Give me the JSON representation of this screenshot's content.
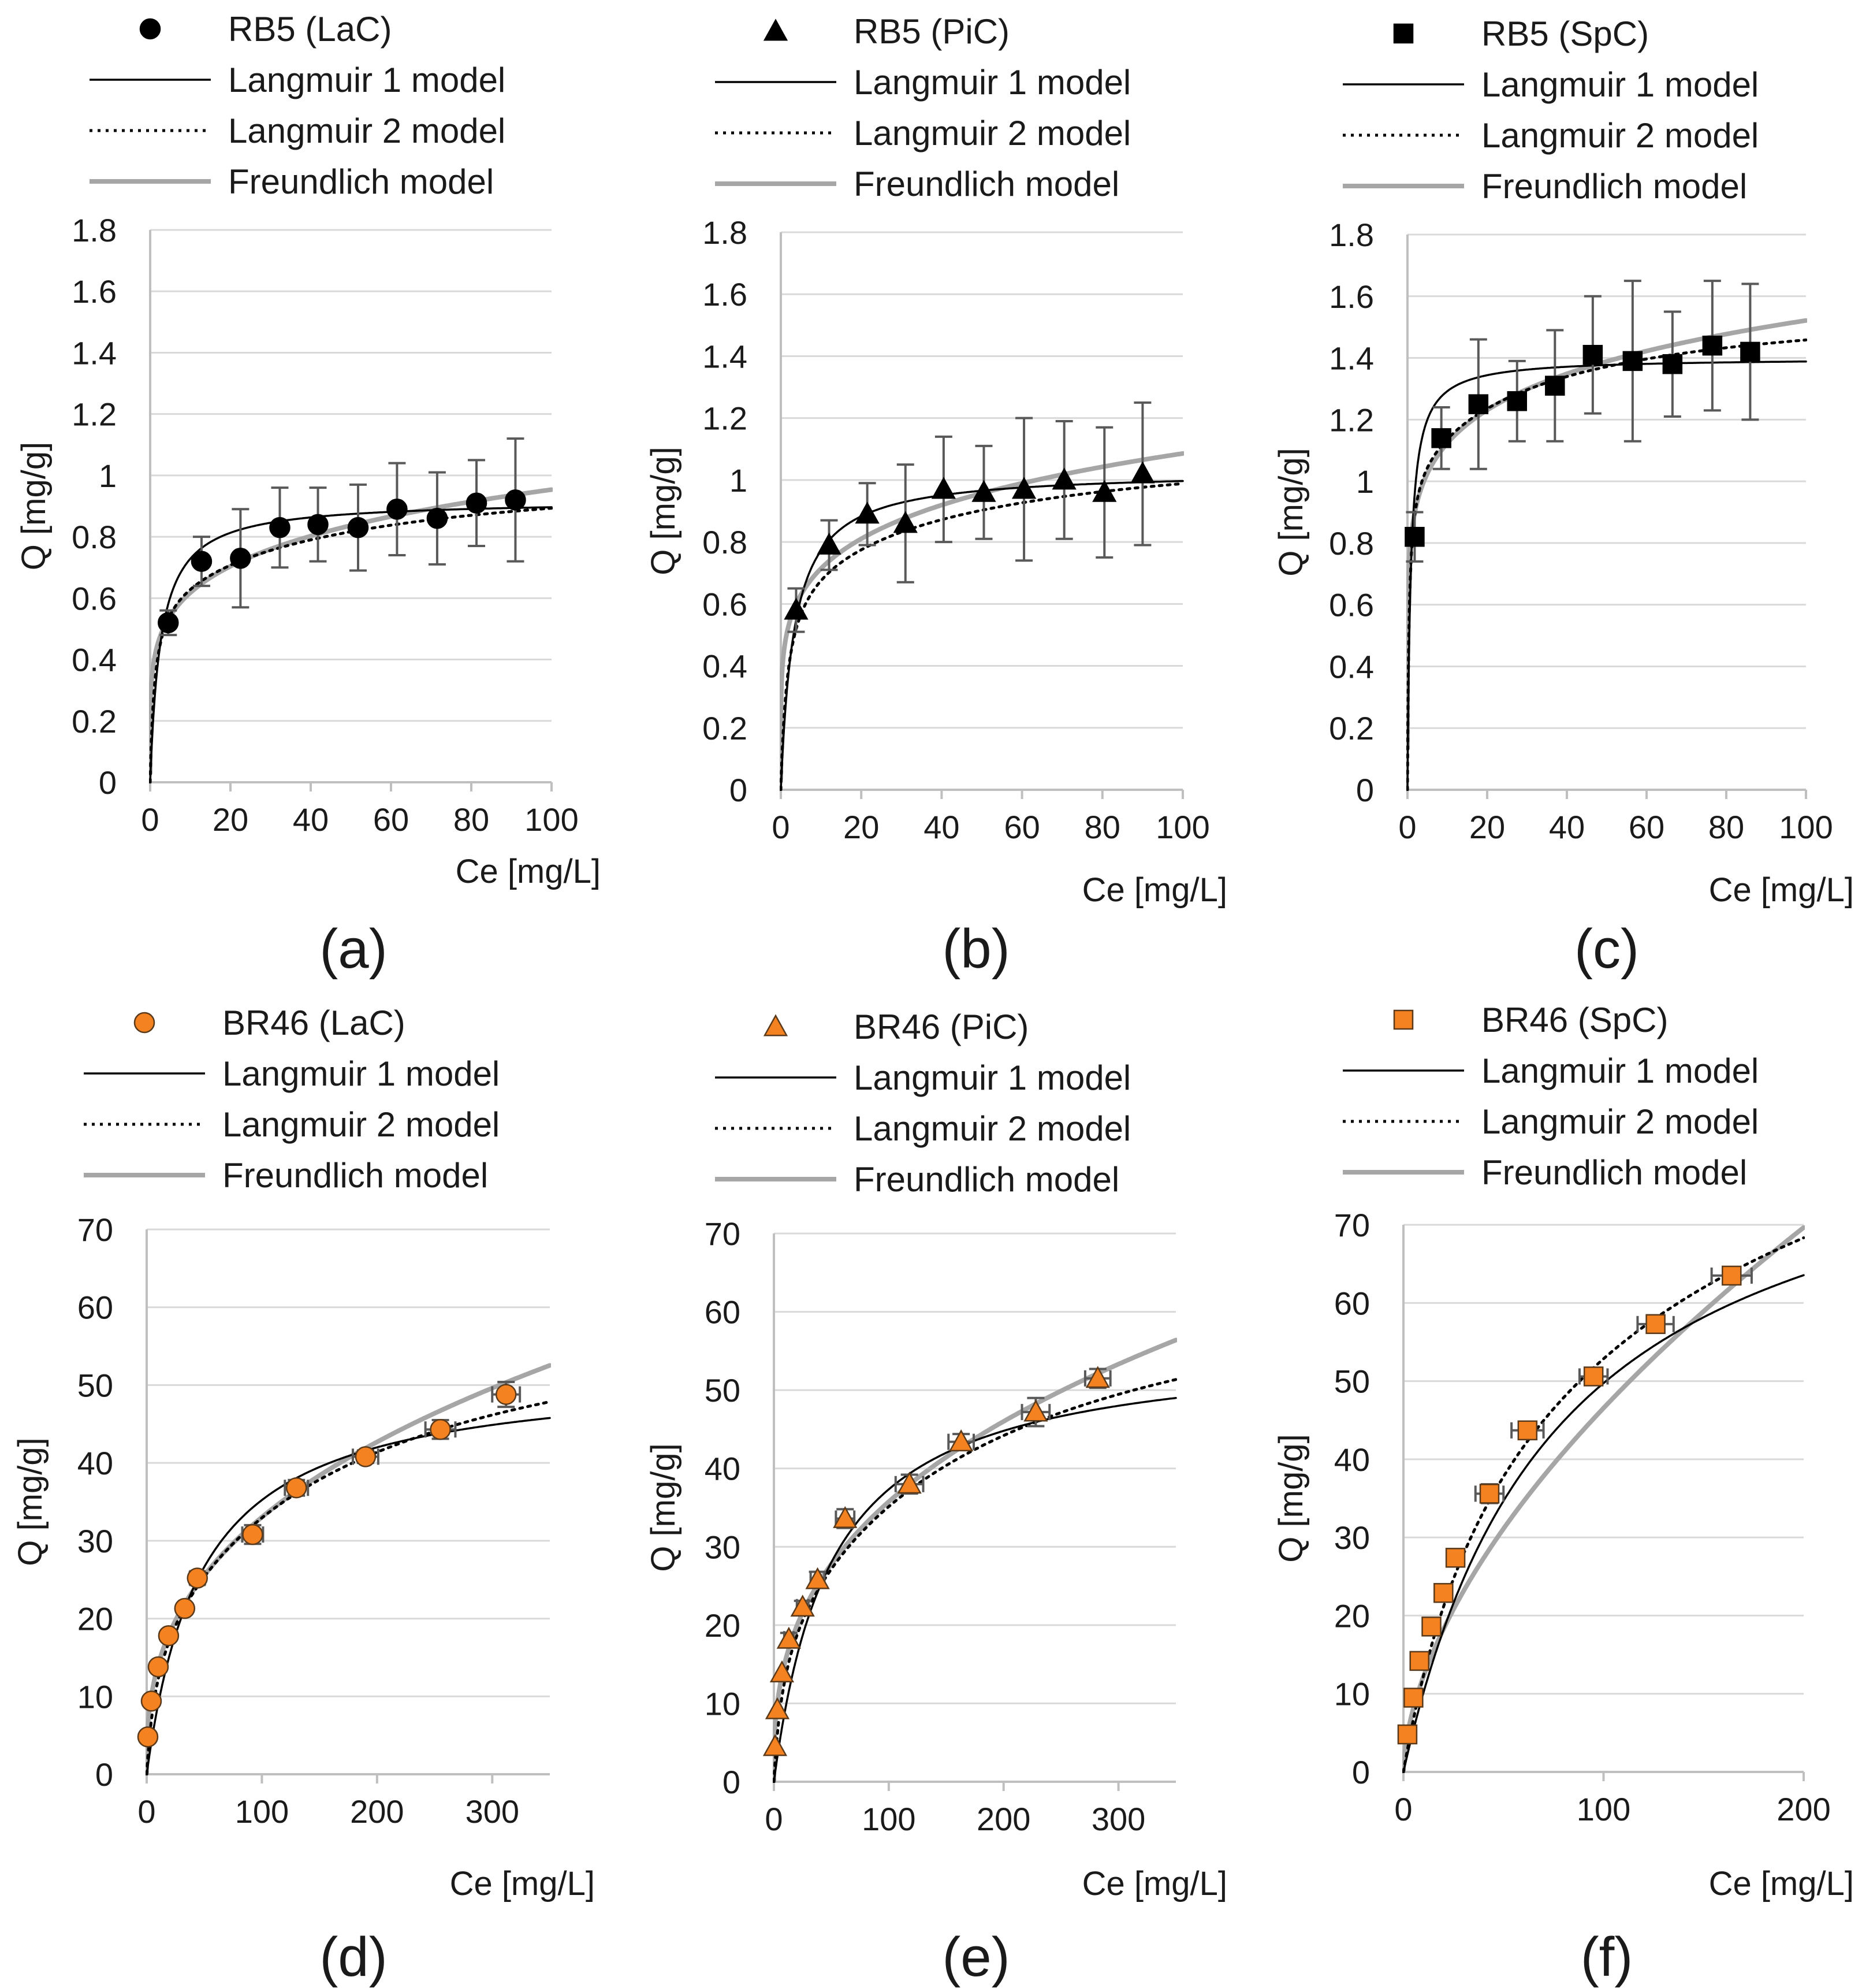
{
  "colors": {
    "marker_black": "#000000",
    "marker_orange": "#f58220",
    "langmuir1": "#000000",
    "langmuir2": "#000000",
    "freundlich": "#a6a6a6",
    "grid": "#d9d9d9",
    "axis": "#bfbfbf",
    "errorbar": "#595959"
  },
  "chart_data": [
    {
      "id": "a",
      "panel_label": "(a)",
      "type": "scatter",
      "marker": "circle",
      "marker_color": "#000000",
      "legend": [
        "RB5 (LaC)",
        "Langmuir 1 model",
        "Langmuir 2 model",
        "Freundlich model"
      ],
      "xlabel": "Ce [mg/L]",
      "ylabel": "Q [mg/g]",
      "xlim": [
        0,
        100
      ],
      "ylim": [
        0,
        1.8
      ],
      "xticks": [
        0,
        20,
        40,
        60,
        80,
        100
      ],
      "xtick_labels": [
        "0",
        "20",
        "40",
        "60",
        "80",
        "100"
      ],
      "yticks": [
        0,
        0.2,
        0.4,
        0.6,
        0.8,
        1,
        1.2,
        1.4,
        1.6,
        1.8
      ],
      "ytick_labels": [
        "0",
        "0.2",
        "0.4",
        "0.6",
        "0.8",
        "1",
        "1.2",
        "1.4",
        "1.6",
        "1.8"
      ],
      "points": [
        {
          "x": 4.5,
          "y": 0.52,
          "yerr": 0.04
        },
        {
          "x": 12.8,
          "y": 0.72,
          "yerr": 0.08
        },
        {
          "x": 22.5,
          "y": 0.73,
          "yerr": 0.16
        },
        {
          "x": 32.3,
          "y": 0.83,
          "yerr": 0.13
        },
        {
          "x": 41.8,
          "y": 0.84,
          "yerr": 0.12
        },
        {
          "x": 51.8,
          "y": 0.83,
          "yerr": 0.14
        },
        {
          "x": 61.5,
          "y": 0.89,
          "yerr": 0.15
        },
        {
          "x": 71.5,
          "y": 0.86,
          "yerr": 0.15
        },
        {
          "x": 81.3,
          "y": 0.91,
          "yerr": 0.14
        },
        {
          "x": 91.0,
          "y": 0.92,
          "yerr": 0.2
        }
      ],
      "models": {
        "langmuir1": {
          "qmax": 0.92,
          "K": 0.38
        },
        "langmuir2": {
          "q1": 0.62,
          "K1": 0.9,
          "q2": 0.42,
          "K2": 0.02
        },
        "freundlich": {
          "KF": 0.4,
          "n": 5.3
        }
      }
    },
    {
      "id": "b",
      "panel_label": "(b)",
      "type": "scatter",
      "marker": "triangle",
      "marker_color": "#000000",
      "legend": [
        "RB5 (PiC)",
        "Langmuir 1 model",
        "Langmuir 2 model",
        "Freundlich model"
      ],
      "xlabel": "Ce [mg/L]",
      "ylabel": "Q [mg/g]",
      "xlim": [
        0,
        100
      ],
      "ylim": [
        0,
        1.8
      ],
      "xticks": [
        0,
        20,
        40,
        60,
        80,
        100
      ],
      "xtick_labels": [
        "0",
        "20",
        "40",
        "60",
        "80",
        "100"
      ],
      "yticks": [
        0,
        0.2,
        0.4,
        0.6,
        0.8,
        1,
        1.2,
        1.4,
        1.6,
        1.8
      ],
      "ytick_labels": [
        "0",
        "0.2",
        "0.4",
        "0.6",
        "0.8",
        "1",
        "1.2",
        "1.4",
        "1.6",
        "1.8"
      ],
      "points": [
        {
          "x": 3.8,
          "y": 0.58,
          "yerr": 0.07
        },
        {
          "x": 12.0,
          "y": 0.79,
          "yerr": 0.08
        },
        {
          "x": 21.5,
          "y": 0.89,
          "yerr": 0.1
        },
        {
          "x": 31.0,
          "y": 0.86,
          "yerr": 0.19
        },
        {
          "x": 40.5,
          "y": 0.97,
          "yerr": 0.17
        },
        {
          "x": 50.5,
          "y": 0.96,
          "yerr": 0.15
        },
        {
          "x": 60.5,
          "y": 0.97,
          "yerr": 0.23
        },
        {
          "x": 70.5,
          "y": 1.0,
          "yerr": 0.19
        },
        {
          "x": 80.5,
          "y": 0.96,
          "yerr": 0.21
        },
        {
          "x": 90.0,
          "y": 1.02,
          "yerr": 0.23
        }
      ],
      "models": {
        "langmuir1": {
          "qmax": 1.03,
          "K": 0.3
        },
        "langmuir2": {
          "q1": 0.7,
          "K1": 0.6,
          "q2": 0.45,
          "K2": 0.02
        },
        "freundlich": {
          "KF": 0.47,
          "n": 5.5
        }
      }
    },
    {
      "id": "c",
      "panel_label": "(c)",
      "type": "scatter",
      "marker": "square",
      "marker_color": "#000000",
      "legend": [
        "RB5 (SpC)",
        "Langmuir 1 model",
        "Langmuir 2 model",
        "Freundlich model"
      ],
      "xlabel": "Ce [mg/L]",
      "ylabel": "Q [mg/g]",
      "xlim": [
        0,
        100
      ],
      "ylim": [
        0,
        1.8
      ],
      "xticks": [
        0,
        20,
        40,
        60,
        80,
        100
      ],
      "xtick_labels": [
        "0",
        "20",
        "40",
        "60",
        "80",
        "100"
      ],
      "yticks": [
        0,
        0.2,
        0.4,
        0.6,
        0.8,
        1,
        1.2,
        1.4,
        1.6,
        1.8
      ],
      "ytick_labels": [
        "0",
        "0.2",
        "0.4",
        "0.6",
        "0.8",
        "1",
        "1.2",
        "1.4",
        "1.6",
        "1.8"
      ],
      "points": [
        {
          "x": 1.8,
          "y": 0.82,
          "yerr": 0.08
        },
        {
          "x": 8.5,
          "y": 1.14,
          "yerr": 0.1
        },
        {
          "x": 17.8,
          "y": 1.25,
          "yerr": 0.21
        },
        {
          "x": 27.5,
          "y": 1.26,
          "yerr": 0.13
        },
        {
          "x": 37.0,
          "y": 1.31,
          "yerr": 0.18
        },
        {
          "x": 46.5,
          "y": 1.41,
          "yerr": 0.19
        },
        {
          "x": 56.5,
          "y": 1.39,
          "yerr": 0.26
        },
        {
          "x": 66.5,
          "y": 1.38,
          "yerr": 0.17
        },
        {
          "x": 76.5,
          "y": 1.44,
          "yerr": 0.21
        },
        {
          "x": 86.0,
          "y": 1.42,
          "yerr": 0.22
        }
      ],
      "models": {
        "langmuir1": {
          "qmax": 1.4,
          "K": 1.2
        },
        "langmuir2": {
          "q1": 1.05,
          "K1": 2.5,
          "q2": 0.55,
          "K2": 0.03
        },
        "freundlich": {
          "KF": 0.83,
          "n": 7.6
        }
      }
    },
    {
      "id": "d",
      "panel_label": "(d)",
      "type": "scatter",
      "marker": "circle",
      "marker_color": "#f58220",
      "legend": [
        "BR46 (LaC)",
        "Langmuir 1 model",
        "Langmuir 2 model",
        "Freundlich model"
      ],
      "xlabel": "Ce [mg/L]",
      "ylabel": "Q [mg/g]",
      "xlim": [
        0,
        350
      ],
      "ylim": [
        0,
        70
      ],
      "xticks": [
        0,
        100,
        200,
        300
      ],
      "xtick_labels": [
        "0",
        "100",
        "200",
        "300"
      ],
      "yticks": [
        0,
        10,
        20,
        30,
        40,
        50,
        60,
        70
      ],
      "ytick_labels": [
        "0",
        "10",
        "20",
        "30",
        "40",
        "50",
        "60",
        "70"
      ],
      "points": [
        {
          "x": 1,
          "y": 4.8,
          "xerr": 0,
          "yerr": 0
        },
        {
          "x": 4,
          "y": 9.4,
          "xerr": 0,
          "yerr": 0
        },
        {
          "x": 10,
          "y": 13.8,
          "xerr": 0,
          "yerr": 0
        },
        {
          "x": 19,
          "y": 17.8,
          "xerr": 0,
          "yerr": 0
        },
        {
          "x": 33,
          "y": 21.3,
          "xerr": 0,
          "yerr": 0
        },
        {
          "x": 44,
          "y": 25.2,
          "xerr": 6,
          "yerr": 0.8
        },
        {
          "x": 92,
          "y": 30.8,
          "xerr": 9,
          "yerr": 1.2
        },
        {
          "x": 130,
          "y": 36.8,
          "xerr": 10,
          "yerr": 1.0
        },
        {
          "x": 190,
          "y": 40.8,
          "xerr": 11,
          "yerr": 0.8
        },
        {
          "x": 255,
          "y": 44.3,
          "xerr": 13,
          "yerr": 1.2
        },
        {
          "x": 312,
          "y": 48.8,
          "xerr": 12,
          "yerr": 1.6
        }
      ],
      "models": {
        "langmuir1": {
          "qmax": 52,
          "K": 0.021
        },
        "langmuir2": {
          "q1": 18,
          "K1": 0.12,
          "q2": 46,
          "K2": 0.0055
        },
        "freundlich": {
          "KF": 6.0,
          "n": 2.7
        }
      }
    },
    {
      "id": "e",
      "panel_label": "(e)",
      "type": "scatter",
      "marker": "triangle",
      "marker_color": "#f58220",
      "legend": [
        "BR46 (PiC)",
        "Langmuir 1 model",
        "Langmuir 2 model",
        "Freundlich model"
      ],
      "xlabel": "Ce [mg/L]",
      "ylabel": "Q [mg/g]",
      "xlim": [
        0,
        350
      ],
      "ylim": [
        0,
        70
      ],
      "xticks": [
        0,
        100,
        200,
        300
      ],
      "xtick_labels": [
        "0",
        "100",
        "200",
        "300"
      ],
      "yticks": [
        0,
        10,
        20,
        30,
        40,
        50,
        60,
        70
      ],
      "ytick_labels": [
        "0",
        "10",
        "20",
        "30",
        "40",
        "50",
        "60",
        "70"
      ],
      "points": [
        {
          "x": 1,
          "y": 4.5,
          "xerr": 0,
          "yerr": 0
        },
        {
          "x": 3,
          "y": 9.2,
          "xerr": 0,
          "yerr": 0
        },
        {
          "x": 7,
          "y": 13.9,
          "xerr": 0,
          "yerr": 0
        },
        {
          "x": 13,
          "y": 18.2,
          "xerr": 4,
          "yerr": 0.8
        },
        {
          "x": 25,
          "y": 22.3,
          "xerr": 5,
          "yerr": 0.8
        },
        {
          "x": 38,
          "y": 25.8,
          "xerr": 6,
          "yerr": 1.0
        },
        {
          "x": 62,
          "y": 33.6,
          "xerr": 8,
          "yerr": 1.2
        },
        {
          "x": 118,
          "y": 38.0,
          "xerr": 12,
          "yerr": 1.2
        },
        {
          "x": 163,
          "y": 43.4,
          "xerr": 11,
          "yerr": 1.0
        },
        {
          "x": 228,
          "y": 47.2,
          "xerr": 12,
          "yerr": 1.8
        },
        {
          "x": 282,
          "y": 51.5,
          "xerr": 11,
          "yerr": 1.2
        }
      ],
      "models": {
        "langmuir1": {
          "qmax": 56,
          "K": 0.02
        },
        "langmuir2": {
          "q1": 20,
          "K1": 0.12,
          "q2": 50,
          "K2": 0.005
        },
        "freundlich": {
          "KF": 6.7,
          "n": 2.75
        }
      }
    },
    {
      "id": "f",
      "panel_label": "(f)",
      "type": "scatter",
      "marker": "square",
      "marker_color": "#f58220",
      "legend": [
        "BR46 (SpC)",
        "Langmuir 1 model",
        "Langmuir 2 model",
        "Freundlich model"
      ],
      "xlabel": "Ce [mg/L]",
      "ylabel": "Q [mg/g]",
      "xlim": [
        0,
        200
      ],
      "ylim": [
        0,
        70
      ],
      "xticks": [
        0,
        100,
        200
      ],
      "xtick_labels": [
        "0",
        "100",
        "200"
      ],
      "yticks": [
        0,
        10,
        20,
        30,
        40,
        50,
        60,
        70
      ],
      "ytick_labels": [
        "0",
        "10",
        "20",
        "30",
        "40",
        "50",
        "60",
        "70"
      ],
      "points": [
        {
          "x": 2,
          "y": 4.8,
          "xerr": 0,
          "yerr": 0
        },
        {
          "x": 5,
          "y": 9.5,
          "xerr": 2,
          "yerr": 0.5
        },
        {
          "x": 8,
          "y": 14.2,
          "xerr": 2.5,
          "yerr": 0.6
        },
        {
          "x": 14,
          "y": 18.6,
          "xerr": 3,
          "yerr": 0.7
        },
        {
          "x": 20,
          "y": 22.9,
          "xerr": 3.5,
          "yerr": 0.8
        },
        {
          "x": 26,
          "y": 27.4,
          "xerr": 4,
          "yerr": 1.0
        },
        {
          "x": 43,
          "y": 35.6,
          "xerr": 7,
          "yerr": 1.2
        },
        {
          "x": 62,
          "y": 43.7,
          "xerr": 8,
          "yerr": 1.0
        },
        {
          "x": 95,
          "y": 50.6,
          "xerr": 7,
          "yerr": 1.0
        },
        {
          "x": 126,
          "y": 57.3,
          "xerr": 9,
          "yerr": 1.0
        },
        {
          "x": 164,
          "y": 63.5,
          "xerr": 10,
          "yerr": 1.0
        }
      ],
      "models": {
        "langmuir1": {
          "qmax": 88,
          "K": 0.013
        },
        "langmuir2": {
          "q1": 50,
          "K1": 0.025,
          "q2": 60,
          "K2": 0.004
        },
        "freundlich": {
          "KF": 3.2,
          "n": 1.72
        }
      }
    }
  ]
}
